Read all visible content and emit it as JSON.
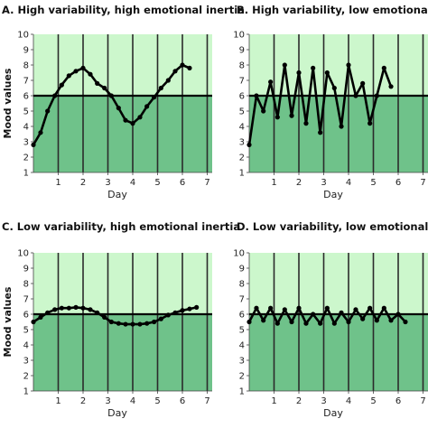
{
  "colors": {
    "upper_band": "#ccf7cc",
    "lower_band": "#6fc28a",
    "line": "#000000",
    "grid": "#2b2b2b",
    "mean_line": "#000000"
  },
  "chart_data": [
    {
      "type": "line",
      "title": "A. High variability, high emotional inertia",
      "xlabel": "Day",
      "ylabel": "Mood values",
      "xlim": [
        0,
        7.2
      ],
      "ylim": [
        1,
        10
      ],
      "xticks": [
        1,
        2,
        3,
        4,
        5,
        6,
        7
      ],
      "yticks": [
        1,
        2,
        3,
        4,
        5,
        6,
        7,
        8,
        9,
        10
      ],
      "mean": 6,
      "bands": [
        {
          "from": 6,
          "to": 10,
          "color": "upper_band"
        },
        {
          "from": 1,
          "to": 6,
          "color": "lower_band"
        }
      ],
      "x": [
        0.0,
        0.29,
        0.57,
        0.86,
        1.14,
        1.43,
        1.71,
        2.0,
        2.29,
        2.57,
        2.86,
        3.14,
        3.43,
        3.71,
        4.0,
        4.29,
        4.57,
        4.86,
        5.14,
        5.43,
        5.71,
        6.0,
        6.29,
        6.57,
        6.86
      ],
      "y": [
        2.8,
        3.6,
        5.0,
        6.0,
        6.7,
        7.3,
        7.6,
        7.8,
        7.4,
        6.8,
        6.5,
        6.0,
        5.2,
        4.4,
        4.2,
        4.6,
        5.3,
        5.9,
        6.5,
        7.0,
        7.6,
        8.0,
        7.8,
        null,
        null
      ]
    },
    {
      "type": "line",
      "title": "B. High variability, low emotional inertia",
      "xlabel": "Day",
      "ylabel": "",
      "xlim": [
        0,
        7.2
      ],
      "ylim": [
        1,
        10
      ],
      "xticks": [
        1,
        2,
        3,
        4,
        5,
        6,
        7
      ],
      "yticks": [
        1,
        2,
        3,
        4,
        5,
        6,
        7,
        8,
        9,
        10
      ],
      "mean": 6,
      "bands": [
        {
          "from": 6,
          "to": 10,
          "color": "upper_band"
        },
        {
          "from": 1,
          "to": 6,
          "color": "lower_band"
        }
      ],
      "x": [
        0.0,
        0.29,
        0.57,
        0.86,
        1.14,
        1.43,
        1.71,
        2.0,
        2.29,
        2.57,
        2.86,
        3.14,
        3.43,
        3.71,
        4.0,
        4.29,
        4.57,
        4.86,
        5.14,
        5.43,
        5.71,
        6.0,
        6.29,
        6.57
      ],
      "y": [
        2.8,
        6.0,
        5.0,
        6.9,
        4.6,
        8.0,
        4.7,
        7.5,
        4.2,
        7.8,
        3.6,
        7.5,
        6.5,
        4.0,
        8.0,
        6.0,
        6.8,
        4.2,
        6.0,
        7.8,
        6.6,
        null,
        null,
        null
      ]
    },
    {
      "type": "line",
      "title": "C. Low variability, high emotional inertia",
      "xlabel": "Day",
      "ylabel": "Mood values",
      "xlim": [
        0,
        7.2
      ],
      "ylim": [
        1,
        10
      ],
      "xticks": [
        1,
        2,
        3,
        4,
        5,
        6,
        7
      ],
      "yticks": [
        1,
        2,
        3,
        4,
        5,
        6,
        7,
        8,
        9,
        10
      ],
      "mean": 6,
      "bands": [
        {
          "from": 6,
          "to": 10,
          "color": "upper_band"
        },
        {
          "from": 1,
          "to": 6,
          "color": "lower_band"
        }
      ],
      "x": [
        0.0,
        0.29,
        0.57,
        0.86,
        1.14,
        1.43,
        1.71,
        2.0,
        2.29,
        2.57,
        2.86,
        3.14,
        3.43,
        3.71,
        4.0,
        4.29,
        4.57,
        4.86,
        5.14,
        5.43,
        5.71,
        6.0,
        6.29,
        6.57,
        6.86
      ],
      "y": [
        5.5,
        5.8,
        6.1,
        6.3,
        6.4,
        6.4,
        6.45,
        6.4,
        6.3,
        6.1,
        5.8,
        5.5,
        5.4,
        5.35,
        5.35,
        5.35,
        5.4,
        5.5,
        5.7,
        5.95,
        6.1,
        6.25,
        6.35,
        6.45,
        null
      ]
    },
    {
      "type": "line",
      "title": "D. Low variability, low emotional inertia",
      "xlabel": "Day",
      "ylabel": "",
      "xlim": [
        0,
        7.2
      ],
      "ylim": [
        1,
        10
      ],
      "xticks": [
        1,
        2,
        3,
        4,
        5,
        6,
        7
      ],
      "yticks": [
        1,
        2,
        3,
        4,
        5,
        6,
        7,
        8,
        9,
        10
      ],
      "mean": 6,
      "bands": [
        {
          "from": 6,
          "to": 10,
          "color": "upper_band"
        },
        {
          "from": 1,
          "to": 6,
          "color": "lower_band"
        }
      ],
      "x": [
        0.0,
        0.29,
        0.57,
        0.86,
        1.14,
        1.43,
        1.71,
        2.0,
        2.29,
        2.57,
        2.86,
        3.14,
        3.43,
        3.71,
        4.0,
        4.29,
        4.57,
        4.86,
        5.14,
        5.43,
        5.71,
        6.0,
        6.29,
        6.57,
        6.86
      ],
      "y": [
        5.5,
        6.4,
        5.6,
        6.4,
        5.4,
        6.3,
        5.5,
        6.4,
        5.4,
        6.0,
        5.4,
        6.4,
        5.4,
        6.1,
        5.5,
        6.3,
        5.7,
        6.4,
        5.6,
        6.4,
        5.6,
        6.0,
        5.5,
        null,
        null
      ]
    }
  ]
}
